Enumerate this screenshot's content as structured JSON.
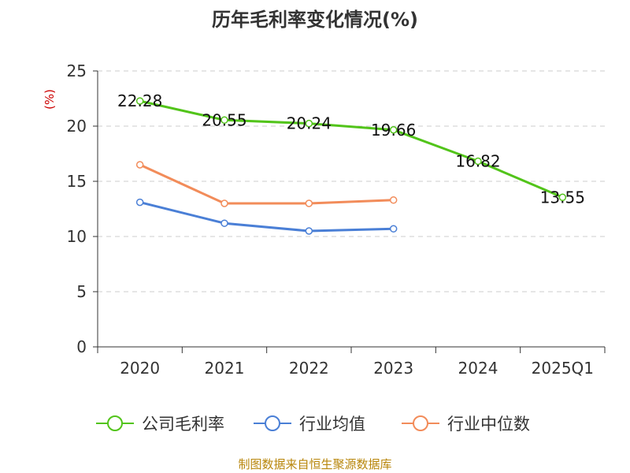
{
  "chart_data": {
    "type": "line",
    "title": "历年毛利率变化情况(%)",
    "unit_label": "(%)",
    "categories": [
      "2020",
      "2021",
      "2022",
      "2023",
      "2024",
      "2025Q1"
    ],
    "ylim": [
      0,
      25
    ],
    "yticks": [
      0,
      5,
      10,
      15,
      20,
      25
    ],
    "series": [
      {
        "name": "公司毛利率",
        "color": "#52c41a",
        "values": [
          22.28,
          20.55,
          20.24,
          19.66,
          16.82,
          13.55
        ],
        "labels": [
          "22.28",
          "20.55",
          "20.24",
          "19.66",
          "16.82",
          "13.55"
        ]
      },
      {
        "name": "行业均值",
        "color": "#4a7fd6",
        "values": [
          13.1,
          11.2,
          10.5,
          10.7,
          null,
          null
        ]
      },
      {
        "name": "行业中位数",
        "color": "#f28c5a",
        "values": [
          16.5,
          13.0,
          13.0,
          13.3,
          null,
          null
        ]
      }
    ],
    "grid": true,
    "legend_position": "bottom"
  },
  "source": "制图数据来自恒生聚源数据库"
}
